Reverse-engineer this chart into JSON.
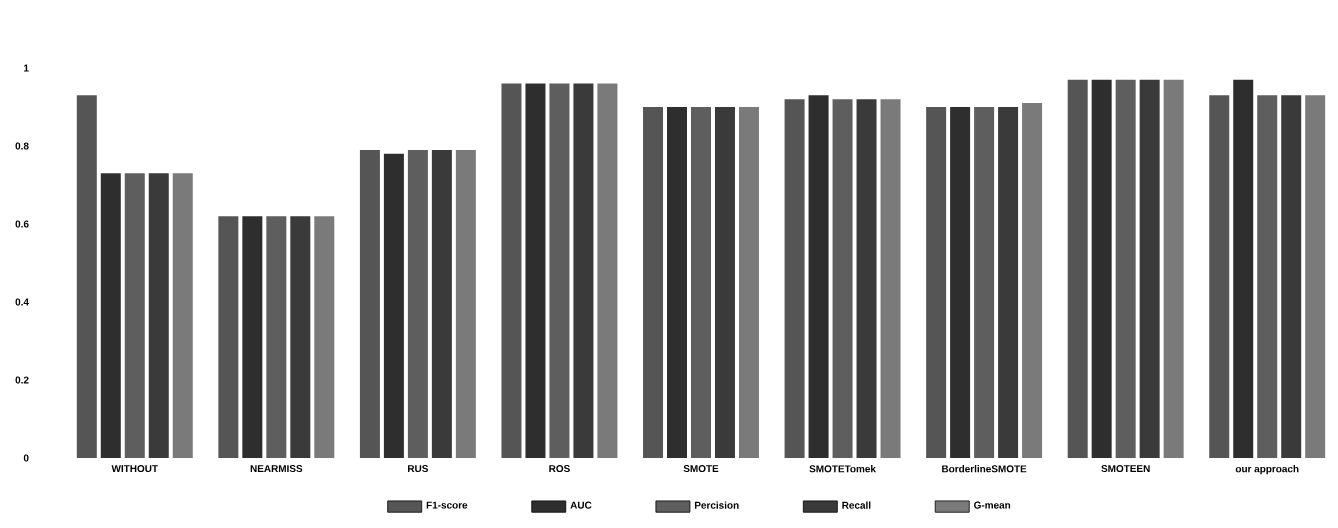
{
  "chart_data": {
    "type": "bar",
    "categories": [
      "WITHOUT",
      "NEARMISS",
      "RUS",
      "ROS",
      "SMOTE",
      "SMOTETomek",
      "BorderlineSMOTE",
      "SMOTEEN",
      "our approach"
    ],
    "series": [
      {
        "name": "F1-score",
        "color": "#555555",
        "values": [
          0.93,
          0.62,
          0.79,
          0.96,
          0.9,
          0.92,
          0.9,
          0.97,
          0.93
        ]
      },
      {
        "name": "AUC",
        "color": "#2e2e2e",
        "values": [
          0.73,
          0.62,
          0.78,
          0.96,
          0.9,
          0.93,
          0.9,
          0.97,
          0.97
        ]
      },
      {
        "name": "Percision",
        "color": "#5e5e5e",
        "values": [
          0.73,
          0.62,
          0.79,
          0.96,
          0.9,
          0.92,
          0.9,
          0.97,
          0.93
        ]
      },
      {
        "name": "Recall",
        "color": "#3a3a3a",
        "values": [
          0.73,
          0.62,
          0.79,
          0.96,
          0.9,
          0.92,
          0.9,
          0.97,
          0.93
        ]
      },
      {
        "name": "G-mean",
        "color": "#7a7a7a",
        "values": [
          0.73,
          0.62,
          0.79,
          0.96,
          0.9,
          0.92,
          0.91,
          0.97,
          0.93
        ]
      }
    ],
    "ylim": [
      0,
      1
    ],
    "yticks": [
      0,
      0.2,
      0.4,
      0.6,
      0.8,
      1
    ],
    "legend": "bottom"
  }
}
